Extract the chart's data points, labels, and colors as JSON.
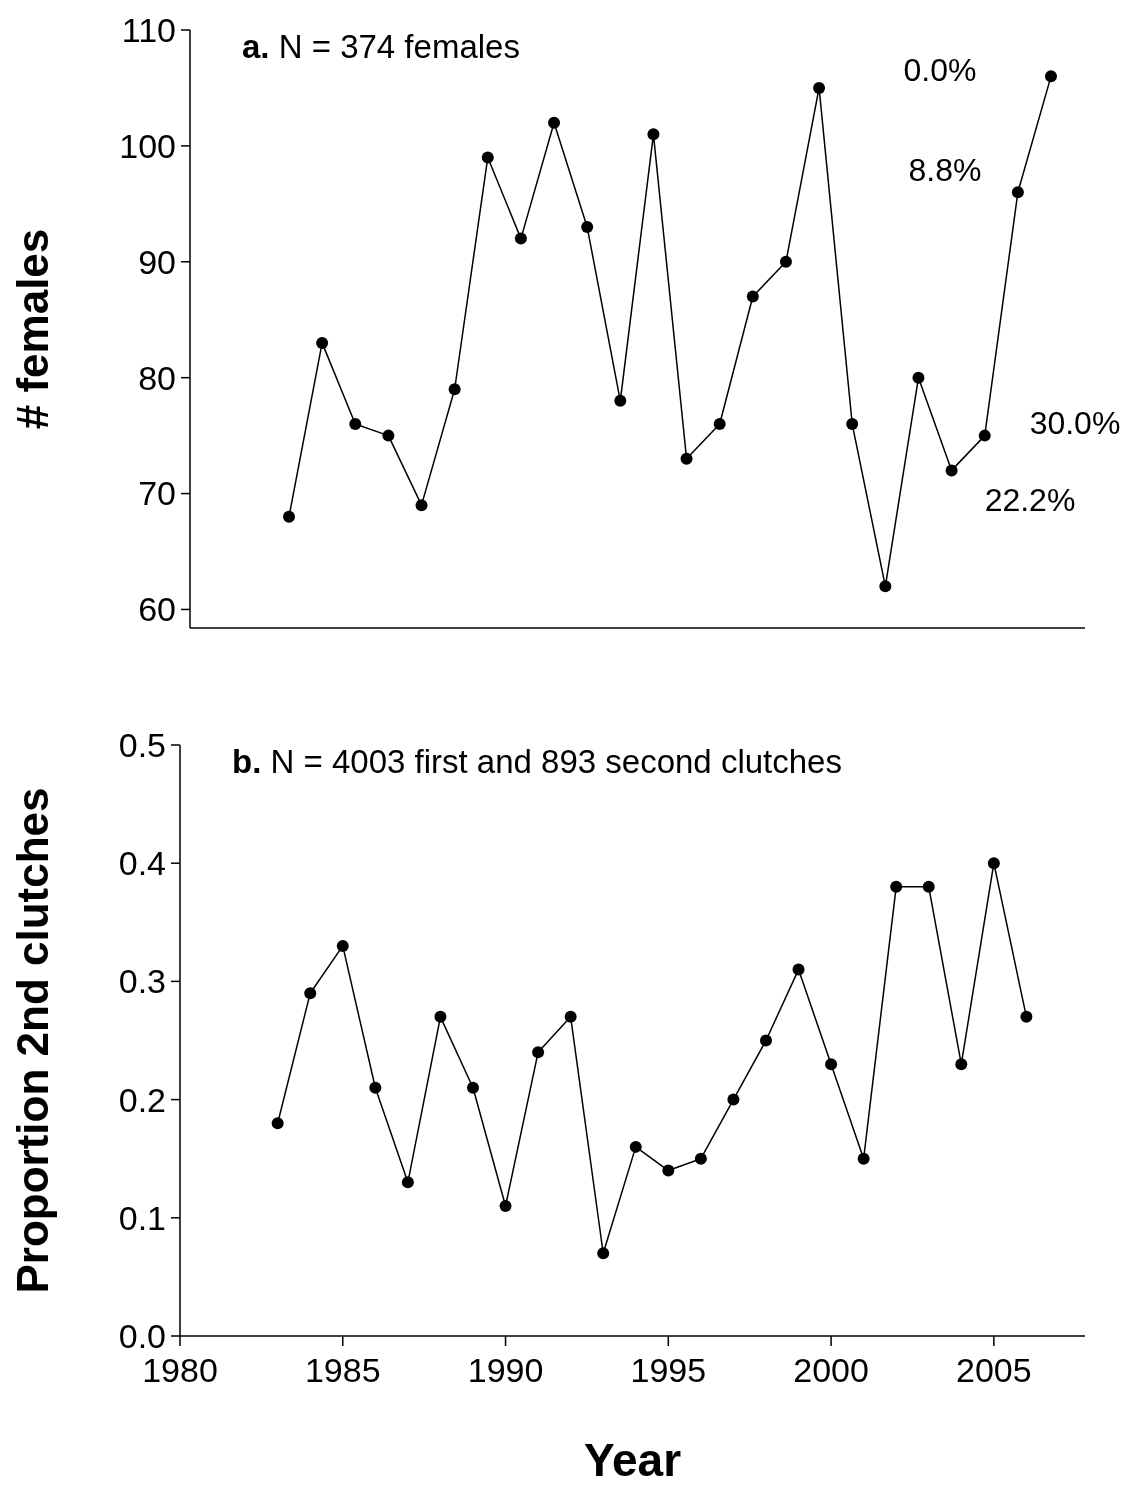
{
  "chart_data": [
    {
      "type": "line",
      "title": "a. N = 374 females",
      "ylabel": "# females",
      "categories": [
        null,
        null,
        null,
        null,
        null,
        null,
        null,
        null,
        null,
        null,
        null,
        null,
        null,
        null,
        null,
        null,
        null,
        null,
        null,
        null,
        null,
        null,
        null,
        null
      ],
      "series": [
        {
          "color": "#000000",
          "values": [
            68,
            83,
            76,
            75,
            69,
            79,
            99,
            92,
            102,
            93,
            78,
            101,
            73,
            76,
            87,
            90,
            105,
            76,
            62,
            80,
            72,
            75,
            96,
            106
          ]
        }
      ],
      "ylim": [
        58.4,
        110
      ],
      "yticks": [
        60,
        70,
        80,
        90,
        100,
        110
      ],
      "tick_labels": "y",
      "marker": "circle",
      "line_style": "solid",
      "grid": false,
      "annotations": [
        "0.0%",
        "8.8%",
        "30.0%",
        "22.2%"
      ]
    },
    {
      "type": "line",
      "title": "b. N = 4003 first and 893 second clutches",
      "xlabel": "Year",
      "ylabel": "Proportion 2nd clutches",
      "x": [
        1983,
        1984,
        1985,
        1986,
        1987,
        1988,
        1989,
        1990,
        1991,
        1992,
        1993,
        1994,
        1995,
        1996,
        1997,
        1998,
        1999,
        2000,
        2001,
        2002,
        2003,
        2004,
        2005,
        2006
      ],
      "series": [
        {
          "color": "#000000",
          "values": [
            0.18,
            0.29,
            0.33,
            0.21,
            0.13,
            0.27,
            0.21,
            0.11,
            0.24,
            0.27,
            0.07,
            0.16,
            0.14,
            0.15,
            0.2,
            0.25,
            0.31,
            0.23,
            0.15,
            0.38,
            0.38,
            0.23,
            0.4,
            0.27
          ]
        }
      ],
      "xlim": [
        1980,
        2007.8
      ],
      "xticks": [
        1980,
        1985,
        1990,
        1995,
        2000,
        2005
      ],
      "ylim": [
        0,
        0.5
      ],
      "yticks": [
        {
          "value": 0,
          "label": "0.0"
        },
        0.1,
        0.2,
        0.3,
        0.4,
        0.5
      ],
      "marker": "circle",
      "line_style": "solid",
      "grid": false
    }
  ]
}
